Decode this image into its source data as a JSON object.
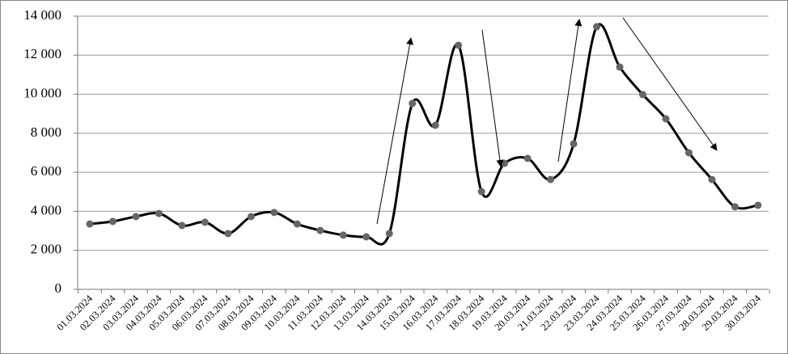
{
  "chart_data": {
    "type": "line",
    "categories": [
      "01.03.2024",
      "02.03.2024",
      "03.03.2024",
      "04.03.2024",
      "05.03.2024",
      "06.03.2024",
      "07.03.2024",
      "08.03.2024",
      "09.03.2024",
      "10.03.2024",
      "11.03.2024",
      "12.03.2024",
      "13.03.2024",
      "14.03.2024",
      "15.03.2024",
      "16.03.2024",
      "17.03.2024",
      "18.03.2024",
      "19.03.2024",
      "20.03.2024",
      "21.03.2024",
      "22.03.2024",
      "23.03.2024",
      "24.03.2024",
      "25.03.2024",
      "26.03.2024",
      "27.03.2024",
      "28.03.2024",
      "29.03.2024",
      "30.03.2024"
    ],
    "values": [
      3350,
      3480,
      3730,
      3890,
      3270,
      3440,
      2860,
      3730,
      3940,
      3350,
      3020,
      2780,
      2690,
      2860,
      9530,
      8410,
      12510,
      5010,
      6460,
      6710,
      5630,
      7460,
      13460,
      11390,
      9980,
      8740,
      7000,
      5630,
      4230,
      4310
    ],
    "color": "#000000",
    "marker_color": "#666666",
    "smooth": true,
    "ylim": [
      0,
      14000
    ],
    "yticks": [
      0,
      {
        "value": 2000,
        "label": "2 000"
      },
      {
        "value": 4000,
        "label": "4 000"
      },
      {
        "value": 6000,
        "label": "6 000"
      },
      {
        "value": 8000,
        "label": "8 000"
      },
      {
        "value": 10000,
        "label": "10 000"
      },
      {
        "value": 12000,
        "label": "12 000"
      },
      {
        "value": 14000,
        "label": "14 000"
      }
    ],
    "grid": true
  }
}
